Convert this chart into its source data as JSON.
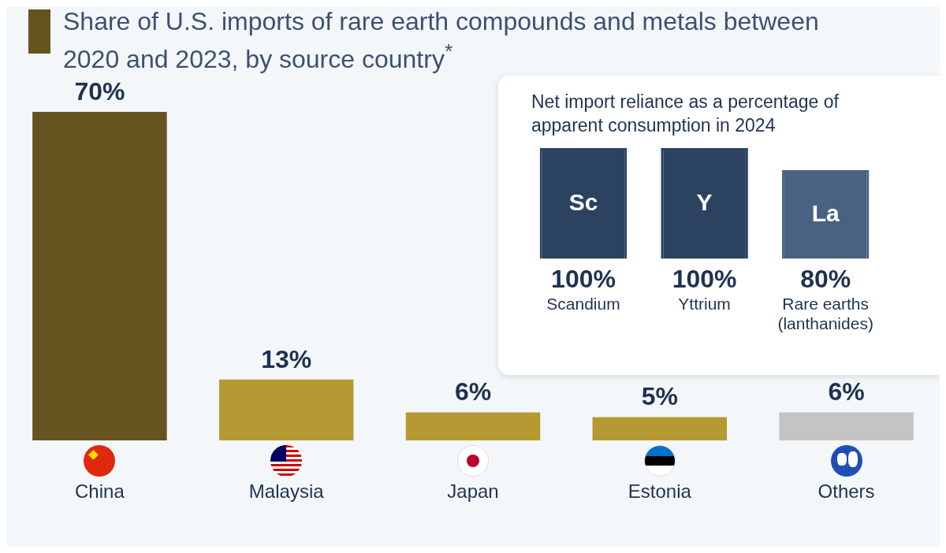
{
  "chart_data": [
    {
      "type": "bar",
      "title": "Share of U.S. imports of rare earth compounds and metals between 2020 and 2023, by source country$^{*}$",
      "categories": [
        "China",
        "Malaysia",
        "Japan",
        "Estonia",
        "Others"
      ],
      "values": [
        70,
        13,
        6,
        5,
        6
      ],
      "colors": [
        "#665420",
        "#b59a33",
        "#b59a33",
        "#b59a33",
        "#c4c4c4"
      ],
      "value_labels": [
        "70%",
        "13%",
        "6%",
        "5%",
        "6%"
      ]
    },
    {
      "type": "bar",
      "title": "Net import reliance as a percentage of apparent consumption in 2024",
      "categories": [
        "Scandium",
        "Yttrium",
        "Rare earths (lanthanides)"
      ],
      "values": [
        100,
        100,
        80
      ],
      "colors": [
        "#2b4261",
        "#2b4261",
        "#4a6282"
      ],
      "value_labels": [
        "100%",
        "100%",
        "80%"
      ],
      "annotations": [
        "Sc",
        "Y",
        "La"
      ]
    }
  ]
}
